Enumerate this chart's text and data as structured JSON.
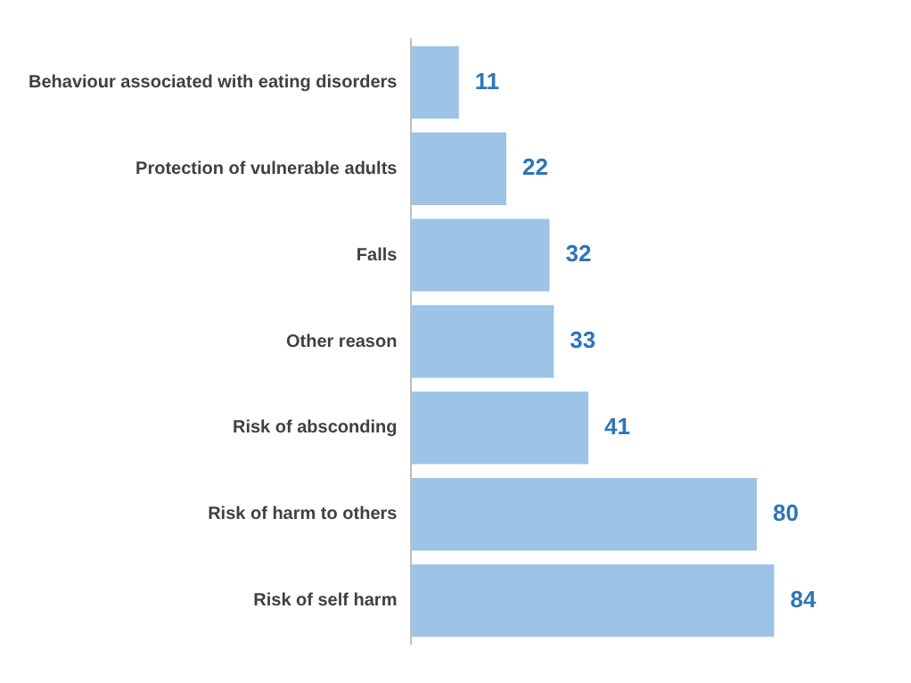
{
  "chart_data": {
    "type": "bar",
    "orientation": "horizontal",
    "categories": [
      "Behaviour associated with eating disorders",
      "Protection of vulnerable adults",
      "Falls",
      "Other reason",
      "Risk of absconding",
      "Risk of harm to others",
      "Risk of self harm"
    ],
    "values": [
      11,
      22,
      32,
      33,
      41,
      80,
      84
    ],
    "color": "#9dc3e6",
    "data_labels": true
  }
}
